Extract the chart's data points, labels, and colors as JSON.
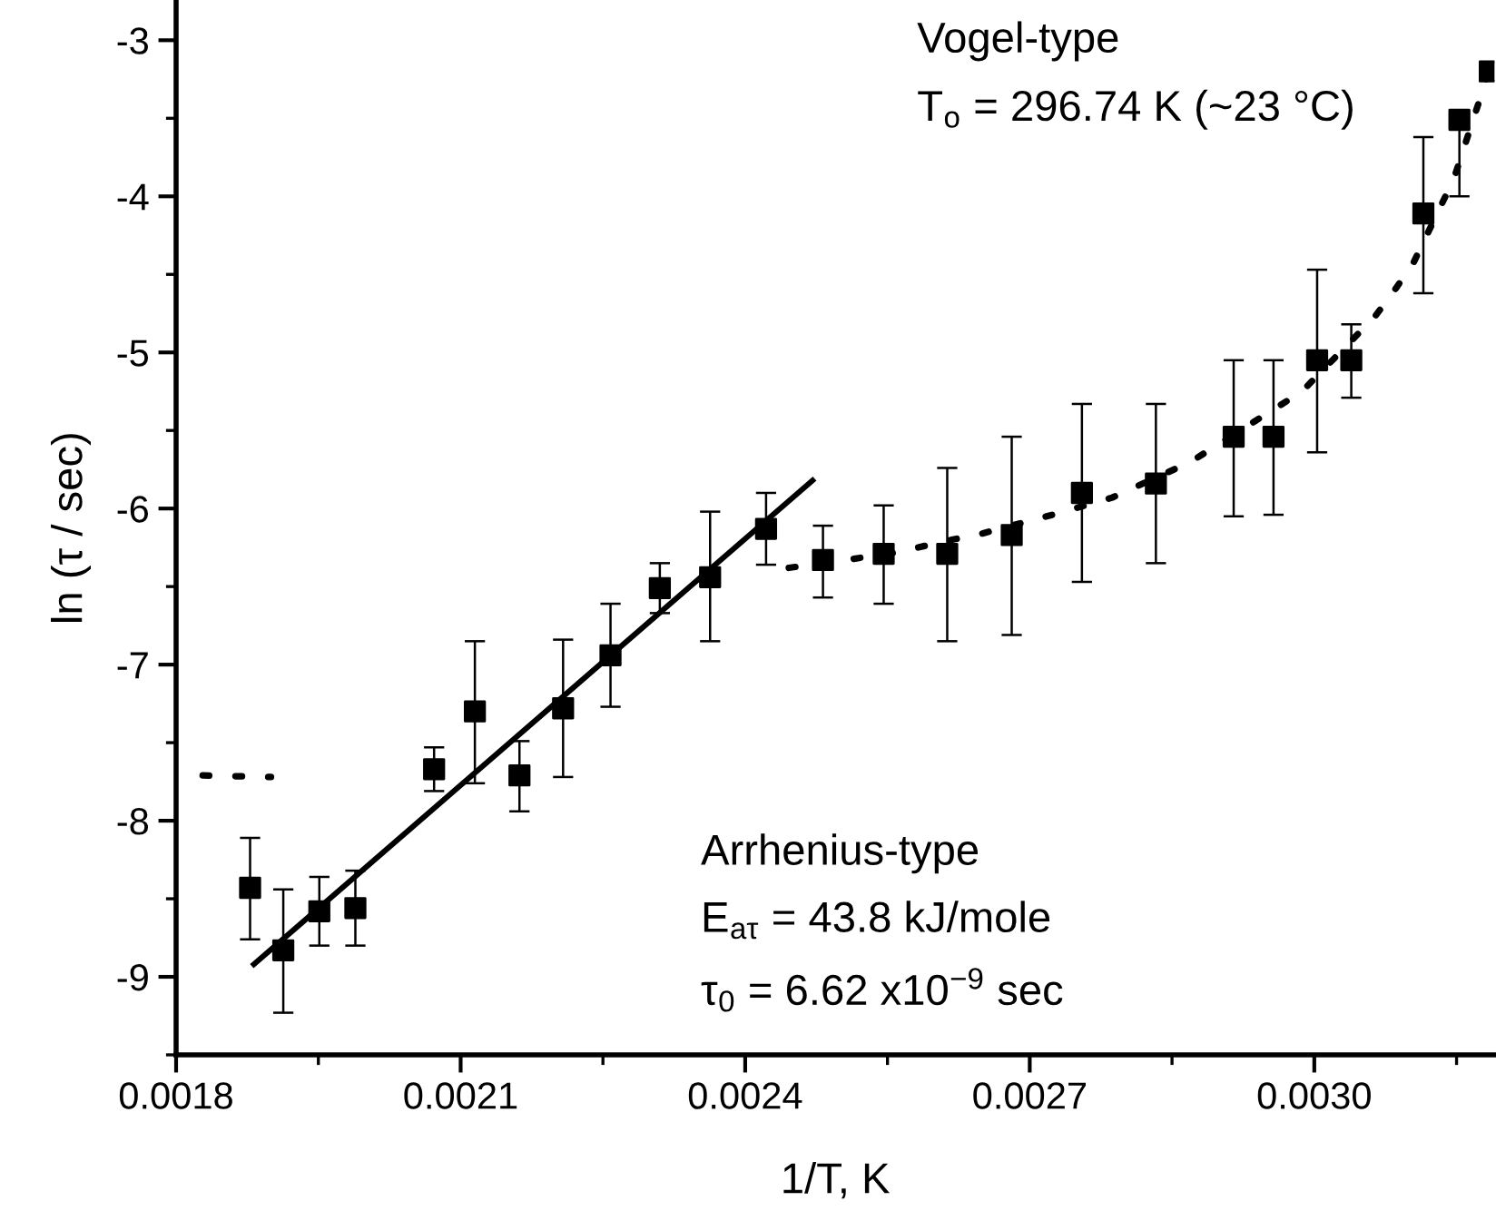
{
  "chart_data": {
    "type": "scatter",
    "xlabel": "1/T, K",
    "ylabel": "ln (τ / sec)",
    "xlim": [
      0.0018,
      0.00319
    ],
    "ylim": [
      -9.5,
      -2.75
    ],
    "xticks": [
      {
        "value": 0.0018,
        "label": "0.0018"
      },
      {
        "value": 0.0021,
        "label": "0.0021"
      },
      {
        "value": 0.0024,
        "label": "0.0024"
      },
      {
        "value": 0.0027,
        "label": "0.0027"
      },
      {
        "value": 0.003,
        "label": "0.0030"
      }
    ],
    "yticks": [
      -9,
      -8,
      -7,
      -6,
      -5,
      -4,
      -3
    ],
    "grid": false,
    "legend": false,
    "series": [
      {
        "color": "#000000",
        "marker": "square",
        "x": [
          0.001878,
          0.001913,
          0.001951,
          0.001989,
          0.002072,
          0.002115,
          0.002162,
          0.002208,
          0.002258,
          0.00231,
          0.002363,
          0.002422,
          0.002482,
          0.002546,
          0.002613,
          0.002681,
          0.002755,
          0.002833,
          0.002915,
          0.002957,
          0.003003,
          0.003039,
          0.003115,
          0.003153,
          0.003185
        ],
        "values": [
          -8.43,
          -8.83,
          -8.58,
          -8.56,
          -7.67,
          -7.3,
          -7.71,
          -7.28,
          -6.94,
          -6.51,
          -6.44,
          -6.13,
          -6.33,
          -6.29,
          -6.29,
          -6.17,
          -5.9,
          -5.84,
          -5.54,
          -5.54,
          -5.05,
          -5.05,
          -4.11,
          -3.51,
          -3.2
        ],
        "errors": [
          [
            -8.76,
            -8.11
          ],
          [
            -9.23,
            -8.44
          ],
          [
            -8.8,
            -8.36
          ],
          [
            -8.8,
            -8.32
          ],
          [
            -7.81,
            -7.53
          ],
          [
            -7.76,
            -6.85
          ],
          [
            -7.94,
            -7.49
          ],
          [
            -7.72,
            -6.84
          ],
          [
            -7.27,
            -6.61
          ],
          [
            -6.67,
            -6.35
          ],
          [
            -6.85,
            -6.02
          ],
          [
            -6.36,
            -5.9
          ],
          [
            -6.57,
            -6.11
          ],
          [
            -6.61,
            -5.98
          ],
          [
            -6.85,
            -5.74
          ],
          [
            -6.81,
            -5.54
          ],
          [
            -6.47,
            -5.33
          ],
          [
            -6.35,
            -5.33
          ],
          [
            -6.05,
            -5.05
          ],
          [
            -6.04,
            -5.05
          ],
          [
            -5.64,
            -4.47
          ],
          [
            -5.29,
            -4.82
          ],
          [
            -4.62,
            -3.62
          ],
          [
            -4.0,
            -3.51
          ],
          null
        ]
      },
      {
        "type": "line",
        "color": "#000000",
        "line_style": "solid",
        "x": [
          0.001882,
          0.002471
        ],
        "values": [
          -8.92,
          -5.82
        ]
      },
      {
        "type": "line",
        "color": "#000000",
        "line_style": "dotted",
        "x": [
          0.002446,
          0.002506,
          0.00256,
          0.002618,
          0.00265,
          0.00273,
          0.002787,
          0.00287,
          0.002987,
          0.003064,
          0.003086,
          0.003105,
          0.003147,
          0.003175,
          0.003187
        ],
        "values": [
          -6.38,
          -6.33,
          -6.28,
          -6.2,
          -6.16,
          -6.03,
          -5.93,
          -5.7,
          -5.25,
          -4.77,
          -4.59,
          -4.42,
          -3.89,
          -3.37,
          -3.13
        ]
      },
      {
        "type": "line",
        "color": "#000000",
        "line_style": "dotted",
        "x": [
          0.001828,
          0.0019
        ],
        "values": [
          -7.71,
          -7.72
        ]
      }
    ],
    "annotations": [
      "Vogel-type",
      "T$_{o}$ = 296.74 K (~23 °C)",
      "Arrhenius-type",
      "E$_{aτ}$ = 43.8 kJ/mole",
      "τ$_{0}$ = 6.62 x10$^{−9}$ sec"
    ]
  }
}
